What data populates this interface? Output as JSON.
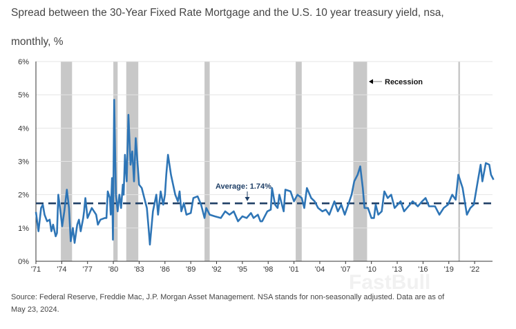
{
  "title_line1": "Spread between the 30-Year Fixed Rate Mortgage and the U.S. 10 year treasury yield, nsa,",
  "title_line2": "monthly, %",
  "footnote_line1": "Source: Federal Reserve, Freddie Mac, J.P. Morgan Asset Management. NSA stands for non-seasonally adjusted. Data are as of",
  "footnote_line2": "May 23, 2024.",
  "watermark": "FastBull",
  "chart_data": {
    "type": "line",
    "title": "Spread between the 30-Year Fixed Rate Mortgage and the U.S. 10 year treasury yield, nsa, monthly, %",
    "xlim": [
      1971,
      2024.4
    ],
    "ylim": [
      0,
      6
    ],
    "yticks": [
      0,
      1,
      2,
      3,
      4,
      5,
      6
    ],
    "ytick_labels": [
      "0%",
      "1%",
      "2%",
      "3%",
      "4%",
      "5%",
      "6%"
    ],
    "xticks": [
      1971,
      1974,
      1977,
      1980,
      1983,
      1986,
      1989,
      1992,
      1995,
      1998,
      2001,
      2004,
      2007,
      2010,
      2013,
      2016,
      2019,
      2022
    ],
    "xtick_labels": [
      "'71",
      "'74",
      "'77",
      "'80",
      "'83",
      "'86",
      "'89",
      "'92",
      "'95",
      "'98",
      "'01",
      "'04",
      "'07",
      "'10",
      "'13",
      "'16",
      "'19",
      "'22"
    ],
    "grid": "horizontal",
    "line_color": "#2e75b6",
    "average": {
      "value": 1.74,
      "label": "Average: 1.74%",
      "color": "#1f3f66"
    },
    "recession_legend": "Recession",
    "recession_color": "#c8c8c8",
    "recessions": [
      [
        1973.9,
        1975.2
      ],
      [
        1980.0,
        1980.5
      ],
      [
        1981.5,
        1982.9
      ],
      [
        1990.6,
        1991.2
      ],
      [
        2001.2,
        2001.9
      ],
      [
        2007.9,
        2009.5
      ],
      [
        2020.1,
        2020.3
      ]
    ],
    "series": [
      [
        1971.0,
        1.48
      ],
      [
        1971.3,
        0.9
      ],
      [
        1971.6,
        1.6
      ],
      [
        1971.8,
        1.7
      ],
      [
        1972.0,
        1.4
      ],
      [
        1972.3,
        1.2
      ],
      [
        1972.6,
        1.25
      ],
      [
        1972.8,
        0.9
      ],
      [
        1973.0,
        1.1
      ],
      [
        1973.3,
        0.75
      ],
      [
        1973.45,
        0.85
      ],
      [
        1973.6,
        2.0
      ],
      [
        1973.8,
        1.6
      ],
      [
        1974.05,
        1.05
      ],
      [
        1974.3,
        1.5
      ],
      [
        1974.6,
        2.15
      ],
      [
        1974.85,
        1.6
      ],
      [
        1975.05,
        0.6
      ],
      [
        1975.3,
        1.0
      ],
      [
        1975.5,
        0.55
      ],
      [
        1975.8,
        1.1
      ],
      [
        1976.0,
        1.25
      ],
      [
        1976.2,
        0.9
      ],
      [
        1976.5,
        1.3
      ],
      [
        1976.6,
        1.5
      ],
      [
        1976.75,
        1.9
      ],
      [
        1977.0,
        1.3
      ],
      [
        1977.5,
        1.6
      ],
      [
        1978.0,
        1.4
      ],
      [
        1978.2,
        1.1
      ],
      [
        1978.5,
        1.25
      ],
      [
        1979.0,
        1.3
      ],
      [
        1979.2,
        1.3
      ],
      [
        1979.35,
        2.1
      ],
      [
        1979.6,
        1.9
      ],
      [
        1979.7,
        1.4
      ],
      [
        1979.85,
        2.5
      ],
      [
        1979.95,
        0.65
      ],
      [
        1980.1,
        4.85
      ],
      [
        1980.3,
        2.0
      ],
      [
        1980.5,
        1.5
      ],
      [
        1980.7,
        2.0
      ],
      [
        1980.9,
        1.6
      ],
      [
        1981.1,
        2.3
      ],
      [
        1981.2,
        2.0
      ],
      [
        1981.35,
        3.2
      ],
      [
        1981.55,
        2.4
      ],
      [
        1981.75,
        4.4
      ],
      [
        1982.0,
        2.9
      ],
      [
        1982.2,
        3.3
      ],
      [
        1982.4,
        2.4
      ],
      [
        1982.6,
        3.7
      ],
      [
        1982.8,
        3.0
      ],
      [
        1983.0,
        2.3
      ],
      [
        1983.3,
        2.2
      ],
      [
        1983.6,
        1.9
      ],
      [
        1983.9,
        1.6
      ],
      [
        1984.1,
        1.0
      ],
      [
        1984.25,
        0.5
      ],
      [
        1984.6,
        1.5
      ],
      [
        1985.0,
        2.0
      ],
      [
        1985.2,
        1.4
      ],
      [
        1985.5,
        2.1
      ],
      [
        1985.8,
        1.7
      ],
      [
        1986.0,
        2.0
      ],
      [
        1986.15,
        2.6
      ],
      [
        1986.35,
        3.2
      ],
      [
        1986.7,
        2.6
      ],
      [
        1987.2,
        2.0
      ],
      [
        1987.5,
        1.8
      ],
      [
        1987.7,
        2.1
      ],
      [
        1987.9,
        1.5
      ],
      [
        1988.2,
        1.75
      ],
      [
        1988.5,
        1.4
      ],
      [
        1989.0,
        1.45
      ],
      [
        1989.3,
        1.9
      ],
      [
        1989.8,
        1.95
      ],
      [
        1990.2,
        1.7
      ],
      [
        1990.6,
        1.3
      ],
      [
        1990.8,
        1.6
      ],
      [
        1991.2,
        1.4
      ],
      [
        1991.8,
        1.35
      ],
      [
        1992.5,
        1.3
      ],
      [
        1993.0,
        1.5
      ],
      [
        1993.5,
        1.4
      ],
      [
        1994.0,
        1.5
      ],
      [
        1994.5,
        1.2
      ],
      [
        1995.0,
        1.35
      ],
      [
        1995.5,
        1.3
      ],
      [
        1996.0,
        1.45
      ],
      [
        1996.3,
        1.3
      ],
      [
        1996.8,
        1.4
      ],
      [
        1997.1,
        1.2
      ],
      [
        1997.3,
        1.2
      ],
      [
        1997.9,
        1.5
      ],
      [
        1998.3,
        1.55
      ],
      [
        1998.45,
        2.2
      ],
      [
        1998.8,
        1.7
      ],
      [
        1999.1,
        1.6
      ],
      [
        1999.3,
        2.0
      ],
      [
        1999.8,
        1.5
      ],
      [
        2000.0,
        2.15
      ],
      [
        2000.6,
        2.1
      ],
      [
        2001.0,
        1.8
      ],
      [
        2001.4,
        2.0
      ],
      [
        2001.9,
        1.9
      ],
      [
        2002.2,
        1.6
      ],
      [
        2002.5,
        2.2
      ],
      [
        2003.0,
        1.9
      ],
      [
        2003.4,
        1.8
      ],
      [
        2003.8,
        1.6
      ],
      [
        2004.3,
        1.5
      ],
      [
        2004.7,
        1.55
      ],
      [
        2005.1,
        1.4
      ],
      [
        2005.7,
        1.8
      ],
      [
        2006.1,
        1.5
      ],
      [
        2006.5,
        1.7
      ],
      [
        2006.9,
        1.4
      ],
      [
        2007.3,
        1.7
      ],
      [
        2007.7,
        2.0
      ],
      [
        2008.0,
        2.4
      ],
      [
        2008.4,
        2.6
      ],
      [
        2008.7,
        2.85
      ],
      [
        2009.0,
        2.2
      ],
      [
        2009.2,
        1.6
      ],
      [
        2009.6,
        1.6
      ],
      [
        2010.0,
        1.3
      ],
      [
        2010.3,
        1.3
      ],
      [
        2010.5,
        1.7
      ],
      [
        2010.8,
        1.4
      ],
      [
        2011.2,
        1.5
      ],
      [
        2011.5,
        2.1
      ],
      [
        2011.9,
        1.9
      ],
      [
        2012.3,
        2.0
      ],
      [
        2012.7,
        1.6
      ],
      [
        2013.4,
        1.8
      ],
      [
        2013.8,
        1.5
      ],
      [
        2014.8,
        1.8
      ],
      [
        2015.4,
        1.65
      ],
      [
        2015.9,
        1.8
      ],
      [
        2016.3,
        1.9
      ],
      [
        2016.7,
        1.65
      ],
      [
        2017.4,
        1.65
      ],
      [
        2017.9,
        1.4
      ],
      [
        2018.4,
        1.6
      ],
      [
        2018.9,
        1.7
      ],
      [
        2019.4,
        2.0
      ],
      [
        2019.8,
        1.85
      ],
      [
        2020.1,
        2.6
      ],
      [
        2020.6,
        2.2
      ],
      [
        2021.1,
        1.4
      ],
      [
        2021.5,
        1.6
      ],
      [
        2021.9,
        1.7
      ],
      [
        2022.3,
        2.3
      ],
      [
        2022.7,
        2.9
      ],
      [
        2022.9,
        2.4
      ],
      [
        2023.3,
        2.95
      ],
      [
        2023.7,
        2.9
      ],
      [
        2023.9,
        2.6
      ],
      [
        2024.2,
        2.45
      ]
    ]
  }
}
